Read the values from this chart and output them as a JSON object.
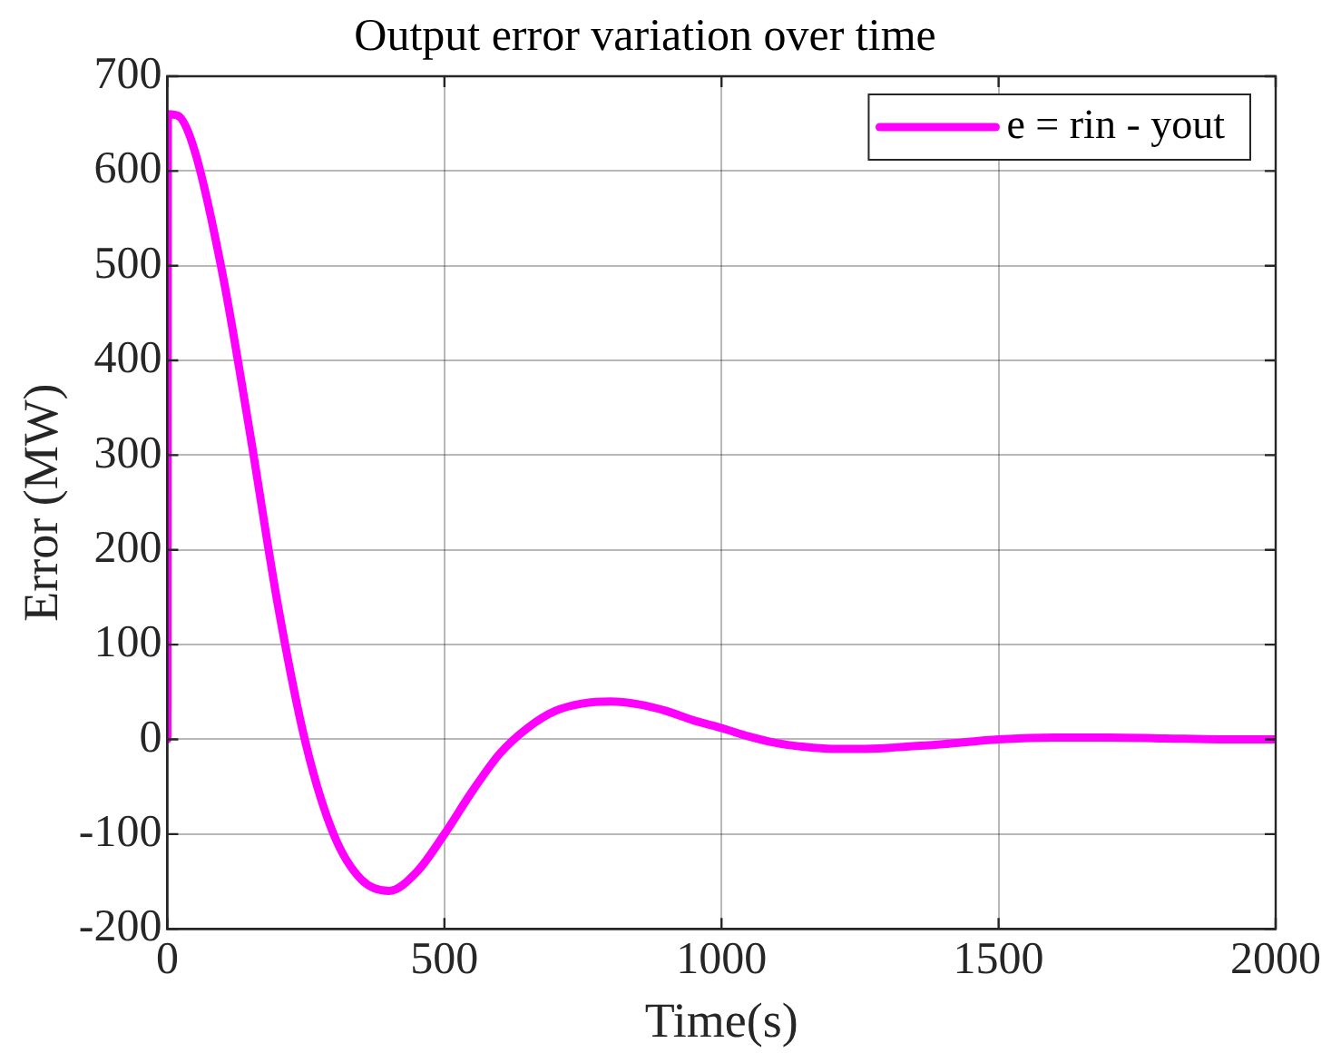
{
  "chart_data": {
    "type": "line",
    "title": "Output error variation over time",
    "xlabel": "Time(s)",
    "ylabel": "Error (MW)",
    "xlim": [
      0,
      2000
    ],
    "xticks": [
      0,
      500,
      1000,
      1500,
      2000
    ],
    "ylim": [
      -200,
      700
    ],
    "yticks": [
      -200,
      -100,
      0,
      100,
      200,
      300,
      400,
      500,
      600,
      700
    ],
    "grid": true,
    "legend": "top right",
    "marker": "none",
    "line_style": "solid",
    "x": [
      0,
      1,
      20,
      50,
      100,
      150,
      200,
      250,
      300,
      350,
      400,
      450,
      500,
      550,
      600,
      650,
      700,
      750,
      800,
      850,
      900,
      950,
      1000,
      1050,
      1100,
      1150,
      1200,
      1250,
      1300,
      1400,
      1500,
      1600,
      1700,
      1800,
      1900,
      2000
    ],
    "series": [
      {
        "name": "e = rin - yout",
        "color": "#ff00ff",
        "values": [
          0,
          660,
          658,
          620,
          490,
          320,
          140,
          -5,
          -100,
          -148,
          -160,
          -140,
          -100,
          -55,
          -15,
          12,
          30,
          38,
          40,
          37,
          30,
          20,
          12,
          3,
          -4,
          -8,
          -10,
          -10,
          -9,
          -5,
          0,
          2,
          2,
          1,
          0,
          0
        ]
      }
    ]
  }
}
